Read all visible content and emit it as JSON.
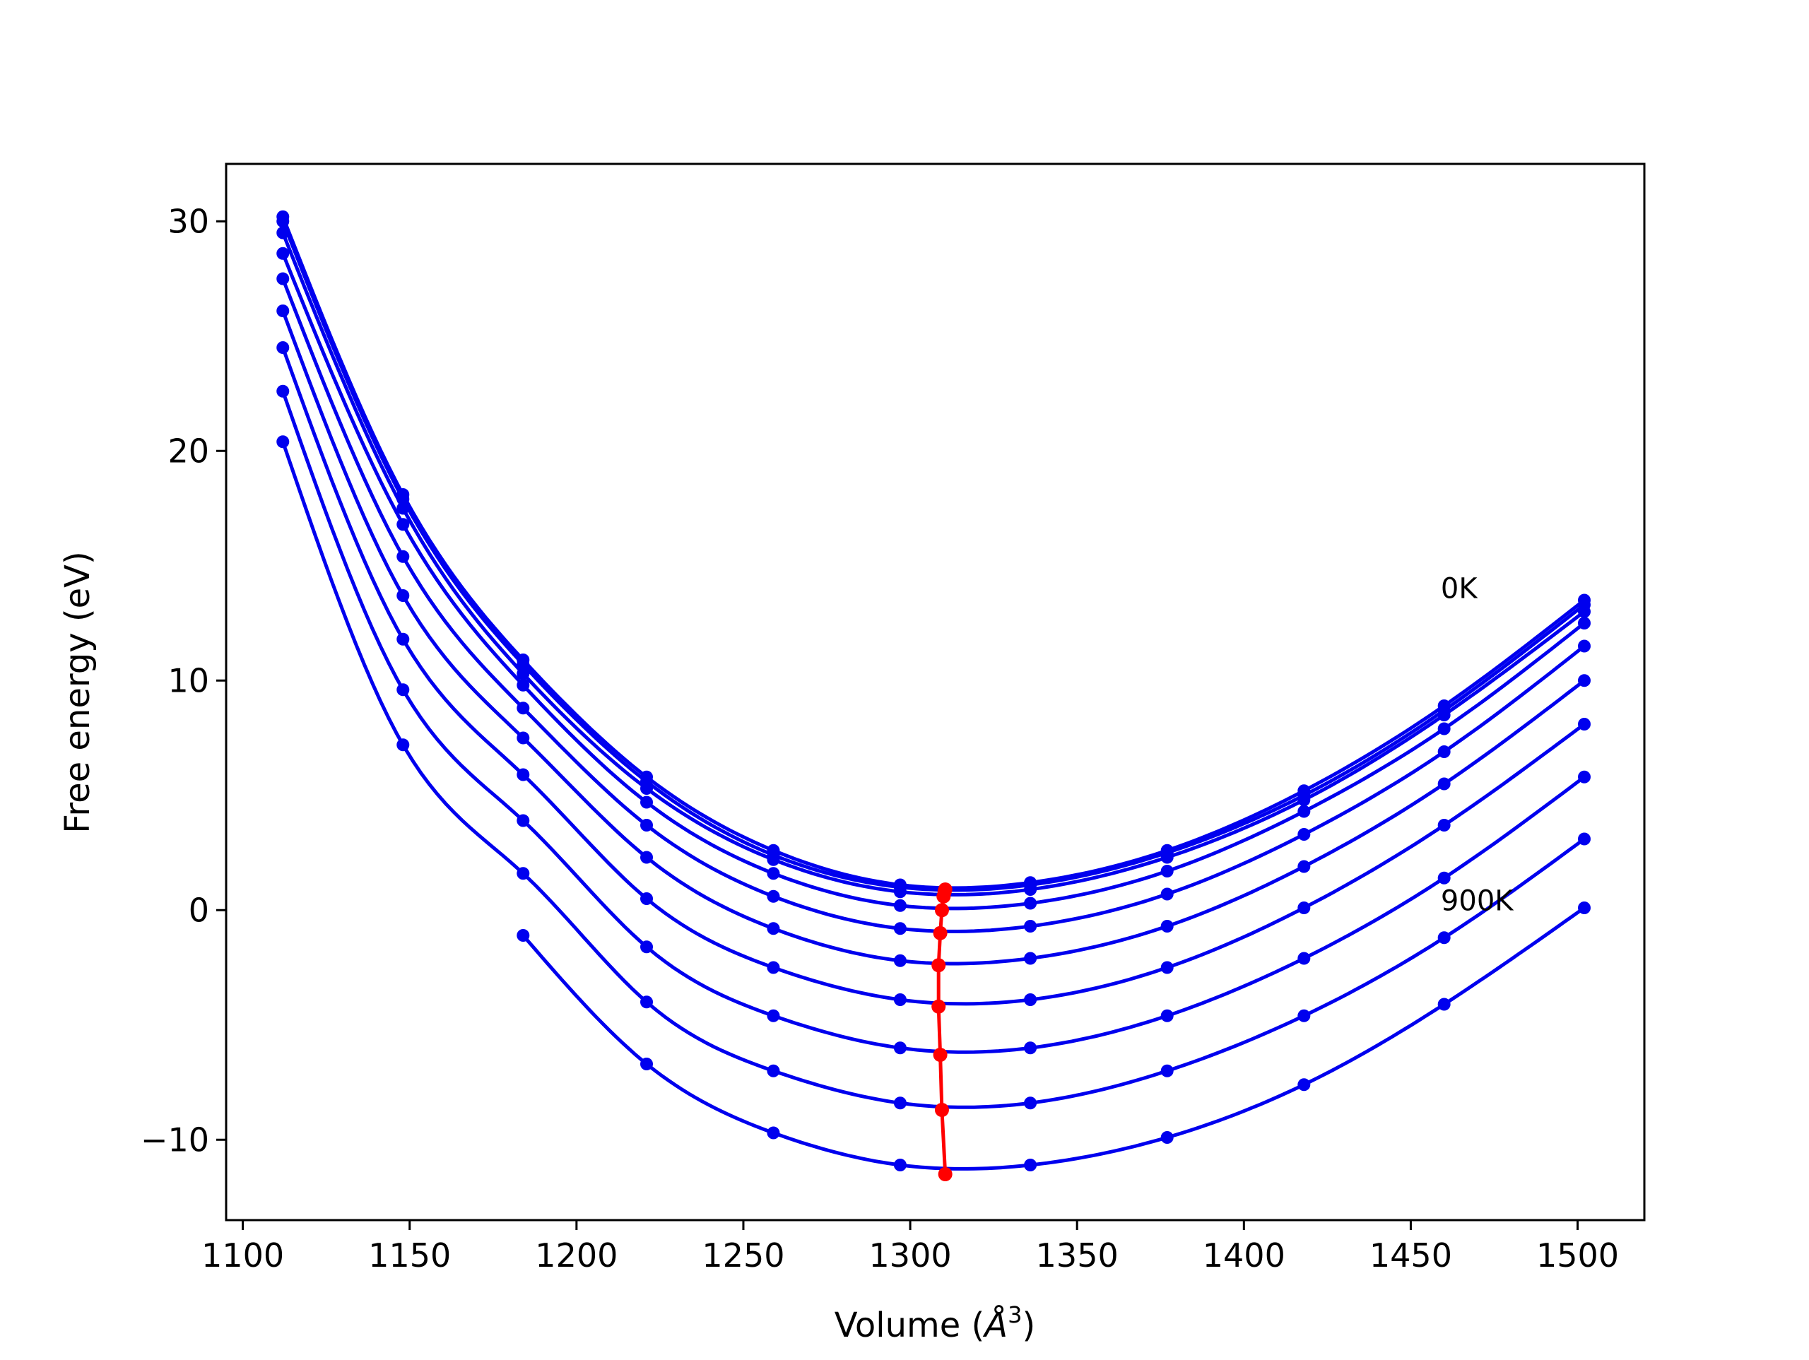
{
  "chart_data": {
    "type": "line",
    "title": "",
    "xlabel": "Volume (Å³)",
    "xlabel_base": "Volume (",
    "xlabel_unit": "Å",
    "xlabel_exp": "3",
    "xlabel_close": ")",
    "ylabel": "Free energy (eV)",
    "xlim": [
      1095,
      1520
    ],
    "ylim": [
      -13.5,
      32.5
    ],
    "xticks": [
      1100,
      1150,
      1200,
      1250,
      1300,
      1350,
      1400,
      1450,
      1500
    ],
    "yticks": [
      -10,
      0,
      10,
      20,
      30
    ],
    "ytick_labels": [
      "−10",
      "0",
      "10",
      "20",
      "30"
    ],
    "grid": false,
    "legend": "none",
    "volumes": [
      1112,
      1148,
      1184,
      1221,
      1259,
      1297,
      1336,
      1377,
      1418,
      1460,
      1502
    ],
    "series": [
      {
        "min_volume": 1310.5,
        "min_energy": 0.9,
        "values": [
          30.2,
          18.1,
          10.9,
          5.8,
          2.6,
          1.1,
          1.2,
          2.6,
          5.2,
          8.9,
          13.5
        ]
      },
      {
        "min_volume": 1310.3,
        "min_energy": 0.8,
        "values": [
          30.0,
          17.9,
          10.7,
          5.6,
          2.4,
          1.0,
          1.1,
          2.5,
          5.0,
          8.7,
          13.3
        ]
      },
      {
        "min_volume": 1310.0,
        "min_energy": 0.6,
        "values": [
          29.5,
          17.5,
          10.3,
          5.3,
          2.2,
          0.8,
          0.9,
          2.3,
          4.8,
          8.5,
          13.0
        ]
      },
      {
        "min_volume": 1309.5,
        "min_energy": 0.0,
        "values": [
          28.6,
          16.8,
          9.8,
          4.7,
          1.6,
          0.2,
          0.3,
          1.7,
          4.3,
          7.9,
          12.5
        ]
      },
      {
        "min_volume": 1309.0,
        "min_energy": -1.0,
        "values": [
          27.5,
          15.4,
          8.8,
          3.7,
          0.6,
          -0.8,
          -0.7,
          0.7,
          3.3,
          6.9,
          11.5
        ]
      },
      {
        "min_volume": 1308.5,
        "min_energy": -2.4,
        "values": [
          26.1,
          13.7,
          7.5,
          2.3,
          -0.8,
          -2.2,
          -2.1,
          -0.7,
          1.9,
          5.5,
          10.0
        ]
      },
      {
        "min_volume": 1308.5,
        "min_energy": -4.2,
        "values": [
          24.5,
          11.8,
          5.9,
          0.5,
          -2.5,
          -3.9,
          -3.9,
          -2.5,
          0.1,
          3.7,
          8.1
        ]
      },
      {
        "min_volume": 1309.0,
        "min_energy": -6.3,
        "values": [
          22.6,
          9.6,
          3.9,
          -1.6,
          -4.6,
          -6.0,
          -6.0,
          -4.6,
          -2.1,
          1.4,
          5.8
        ]
      },
      {
        "min_volume": 1309.5,
        "min_energy": -8.7,
        "values": [
          20.4,
          7.2,
          1.6,
          -4.0,
          -7.0,
          -8.4,
          -8.4,
          -7.0,
          -4.6,
          -1.2,
          3.1
        ]
      },
      {
        "min_volume": 1310.5,
        "min_energy": -11.5,
        "values": [
          null,
          null,
          -1.1,
          -6.7,
          -9.7,
          -11.1,
          -11.1,
          -9.9,
          -7.6,
          -4.1,
          0.1
        ]
      }
    ],
    "curve_color": "#0000ee",
    "minima_color": "#ff0000",
    "annotations": [
      {
        "text": "0K",
        "x": 1459,
        "y": 13.6
      },
      {
        "text": "900K",
        "x": 1459,
        "y": 0.0
      }
    ]
  }
}
